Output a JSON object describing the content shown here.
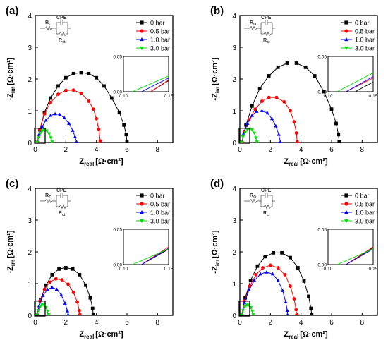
{
  "chart_data": [
    {
      "type": "scatter",
      "panel_label": "(a)",
      "xlabel_main": "Z",
      "xlabel_sub": "real",
      "xlabel_unit": "[Ω·cm²]",
      "ylabel_main": "-Z",
      "ylabel_sub": "im",
      "ylabel_unit": "[Ω·cm²]",
      "xlim": [
        0,
        9
      ],
      "ylim": [
        0,
        4
      ],
      "xticks": [
        "0",
        "2",
        "4",
        "6",
        "8"
      ],
      "yticks": [
        "0",
        "1",
        "2",
        "3",
        "4"
      ],
      "circuit": {
        "label_r0": "R",
        "label_r0_sub": "Ω",
        "label_cpe": "CPE",
        "label_rct": "R",
        "label_rct_sub": "ct"
      },
      "legend_position": "top-right",
      "series": [
        {
          "name": "0 bar",
          "color": "#000000",
          "marker": "square",
          "x": [
            0.13,
            0.3,
            0.6,
            1.0,
            1.5,
            2.0,
            2.5,
            3.0,
            3.5,
            4.0,
            4.5,
            5.0,
            5.5,
            5.8,
            5.95,
            6.0
          ],
          "y": [
            0.0,
            0.4,
            0.95,
            1.4,
            1.78,
            2.04,
            2.17,
            2.2,
            2.17,
            2.04,
            1.78,
            1.4,
            0.95,
            0.55,
            0.25,
            0.02
          ]
        },
        {
          "name": "0.5 bar",
          "color": "#ff0000",
          "marker": "circle",
          "x": [
            0.13,
            0.3,
            0.6,
            1.0,
            1.5,
            2.0,
            2.5,
            3.0,
            3.5,
            3.8,
            4.0,
            4.15,
            4.25
          ],
          "y": [
            0.0,
            0.42,
            0.9,
            1.26,
            1.52,
            1.64,
            1.65,
            1.55,
            1.3,
            1.05,
            0.75,
            0.42,
            0.05
          ]
        },
        {
          "name": "1.0 bar",
          "color": "#0000ff",
          "marker": "triangle",
          "x": [
            0.12,
            0.25,
            0.45,
            0.7,
            1.0,
            1.3,
            1.6,
            1.9,
            2.2,
            2.45,
            2.6,
            2.7
          ],
          "y": [
            0.0,
            0.25,
            0.5,
            0.7,
            0.85,
            0.9,
            0.88,
            0.78,
            0.6,
            0.38,
            0.18,
            0.02
          ]
        },
        {
          "name": "3.0 bar",
          "color": "#00dd00",
          "marker": "triangle-down",
          "x": [
            0.11,
            0.2,
            0.32,
            0.45,
            0.6,
            0.75,
            0.9,
            1.02,
            1.1
          ],
          "y": [
            0.0,
            0.15,
            0.28,
            0.37,
            0.4,
            0.37,
            0.28,
            0.15,
            0.02
          ]
        }
      ],
      "inset": {
        "xlim": [
          0.1,
          0.15
        ],
        "ylim": [
          0,
          0.05
        ],
        "xticks": [
          "0.10",
          "0.15"
        ],
        "yticks": [
          "0.00",
          "0.05"
        ]
      }
    },
    {
      "type": "scatter",
      "panel_label": "(b)",
      "xlabel_main": "Z",
      "xlabel_sub": "real",
      "xlabel_unit": "[Ω·cm²]",
      "ylabel_main": "-Z",
      "ylabel_sub": "im",
      "ylabel_unit": "[Ω·cm²]",
      "xlim": [
        0,
        9
      ],
      "ylim": [
        0,
        4
      ],
      "xticks": [
        "0",
        "2",
        "4",
        "6",
        "8"
      ],
      "yticks": [
        "0",
        "1",
        "2",
        "3",
        "4"
      ],
      "circuit": {
        "label_r0": "R",
        "label_r0_sub": "Ω",
        "label_cpe": "CPE",
        "label_rct": "R",
        "label_rct_sub": "ct"
      },
      "legend_position": "top-right",
      "series": [
        {
          "name": "0 bar",
          "color": "#000000",
          "marker": "square",
          "x": [
            0.13,
            0.4,
            0.8,
            1.3,
            1.9,
            2.5,
            3.1,
            3.7,
            4.3,
            4.9,
            5.5,
            6.0,
            6.3,
            6.45,
            6.5
          ],
          "y": [
            0.0,
            0.55,
            1.15,
            1.7,
            2.1,
            2.37,
            2.5,
            2.5,
            2.37,
            2.1,
            1.6,
            1.05,
            0.6,
            0.25,
            0.02
          ]
        },
        {
          "name": "0.5 bar",
          "color": "#ff0000",
          "marker": "circle",
          "x": [
            0.12,
            0.3,
            0.6,
            1.0,
            1.45,
            1.9,
            2.4,
            2.9,
            3.3,
            3.55,
            3.7,
            3.75
          ],
          "y": [
            0.0,
            0.35,
            0.72,
            1.05,
            1.3,
            1.42,
            1.42,
            1.28,
            1.0,
            0.65,
            0.3,
            0.02
          ]
        },
        {
          "name": "1.0 bar",
          "color": "#0000ff",
          "marker": "triangle",
          "x": [
            0.12,
            0.25,
            0.5,
            0.8,
            1.1,
            1.45,
            1.8,
            2.1,
            2.35,
            2.55,
            2.65
          ],
          "y": [
            0.0,
            0.28,
            0.6,
            0.85,
            0.98,
            1.0,
            0.93,
            0.75,
            0.52,
            0.25,
            0.02
          ]
        },
        {
          "name": "3.0 bar",
          "color": "#00dd00",
          "marker": "triangle-down",
          "x": [
            0.11,
            0.2,
            0.35,
            0.5,
            0.65,
            0.8,
            0.95,
            1.05,
            1.12
          ],
          "y": [
            0.0,
            0.18,
            0.32,
            0.4,
            0.43,
            0.4,
            0.3,
            0.15,
            0.02
          ]
        }
      ],
      "inset": {
        "xlim": [
          0.1,
          0.15
        ],
        "ylim": [
          0,
          0.05
        ],
        "xticks": [
          "0.10",
          "0.15"
        ],
        "yticks": [
          "0.00",
          "0.05"
        ]
      }
    },
    {
      "type": "scatter",
      "panel_label": "(c)",
      "xlabel_main": "Z",
      "xlabel_sub": "real",
      "xlabel_unit": "[Ω·cm²]",
      "ylabel_main": "-Z",
      "ylabel_sub": "im",
      "ylabel_unit": "[Ω·cm²]",
      "xlim": [
        0,
        9
      ],
      "ylim": [
        0,
        4
      ],
      "xticks": [
        "0",
        "2",
        "4",
        "6",
        "8"
      ],
      "yticks": [
        "0",
        "1",
        "2",
        "3",
        "4"
      ],
      "circuit": {
        "label_r0": "R",
        "label_r0_sub": "Ω",
        "label_cpe": "CPE",
        "label_rct": "R",
        "label_rct_sub": "ct"
      },
      "legend_position": "top-right",
      "series": [
        {
          "name": "0 bar",
          "color": "#000000",
          "marker": "square",
          "x": [
            0.12,
            0.35,
            0.7,
            1.1,
            1.55,
            2.0,
            2.45,
            2.9,
            3.3,
            3.6,
            3.75,
            3.8
          ],
          "y": [
            0.0,
            0.5,
            0.95,
            1.28,
            1.46,
            1.5,
            1.46,
            1.28,
            0.95,
            0.55,
            0.22,
            0.02
          ]
        },
        {
          "name": "0.5 bar",
          "color": "#ff0000",
          "marker": "circle",
          "x": [
            0.12,
            0.3,
            0.6,
            0.95,
            1.35,
            1.75,
            2.15,
            2.5,
            2.75,
            2.88,
            2.92
          ],
          "y": [
            0.0,
            0.45,
            0.82,
            1.05,
            1.15,
            1.12,
            0.98,
            0.72,
            0.42,
            0.15,
            0.02
          ]
        },
        {
          "name": "1.0 bar",
          "color": "#0000ff",
          "marker": "triangle",
          "x": [
            0.12,
            0.25,
            0.5,
            0.8,
            1.1,
            1.4,
            1.7,
            1.95,
            2.1,
            2.15
          ],
          "y": [
            0.0,
            0.3,
            0.62,
            0.82,
            0.88,
            0.82,
            0.64,
            0.38,
            0.14,
            0.02
          ]
        },
        {
          "name": "3.0 bar",
          "color": "#00dd00",
          "marker": "triangle-down",
          "x": [
            0.11,
            0.2,
            0.32,
            0.45,
            0.58,
            0.7,
            0.8,
            0.87
          ],
          "y": [
            0.0,
            0.15,
            0.27,
            0.33,
            0.33,
            0.25,
            0.13,
            0.02
          ]
        }
      ],
      "inset": {
        "xlim": [
          0.1,
          0.15
        ],
        "ylim": [
          0,
          0.05
        ],
        "xticks": [
          "0.10",
          "0.15"
        ],
        "yticks": [
          "0.00",
          "0.05"
        ]
      }
    },
    {
      "type": "scatter",
      "panel_label": "(d)",
      "xlabel_main": "Z",
      "xlabel_sub": "real",
      "xlabel_unit": "[Ω·cm²]",
      "ylabel_main": "-Z",
      "ylabel_sub": "im",
      "ylabel_unit": "[Ω·cm²]",
      "xlim": [
        0,
        9
      ],
      "ylim": [
        0,
        4
      ],
      "xticks": [
        "0",
        "2",
        "4",
        "6",
        "8"
      ],
      "yticks": [
        "0",
        "1",
        "2",
        "3",
        "4"
      ],
      "circuit": {
        "label_r0": "R",
        "label_r0_sub": "Ω",
        "label_cpe": "CPE",
        "label_rct": "R",
        "label_rct_sub": "ct"
      },
      "legend_position": "top-right",
      "series": [
        {
          "name": "0 bar",
          "color": "#000000",
          "marker": "square",
          "x": [
            0.12,
            0.35,
            0.7,
            1.15,
            1.65,
            2.2,
            2.75,
            3.3,
            3.8,
            4.2,
            4.5,
            4.65,
            4.7
          ],
          "y": [
            0.0,
            0.55,
            1.1,
            1.55,
            1.85,
            1.97,
            1.97,
            1.82,
            1.5,
            1.08,
            0.6,
            0.22,
            0.02
          ]
        },
        {
          "name": "0.5 bar",
          "color": "#ff0000",
          "marker": "circle",
          "x": [
            0.12,
            0.3,
            0.65,
            1.05,
            1.5,
            2.0,
            2.5,
            2.95,
            3.3,
            3.55,
            3.68,
            3.72
          ],
          "y": [
            0.0,
            0.45,
            0.92,
            1.28,
            1.5,
            1.58,
            1.5,
            1.28,
            0.92,
            0.52,
            0.18,
            0.02
          ]
        },
        {
          "name": "1.0 bar",
          "color": "#0000ff",
          "marker": "triangle",
          "x": [
            0.12,
            0.3,
            0.6,
            0.95,
            1.35,
            1.75,
            2.15,
            2.5,
            2.8,
            3.0,
            3.1,
            3.12
          ],
          "y": [
            0.0,
            0.4,
            0.8,
            1.1,
            1.3,
            1.36,
            1.3,
            1.1,
            0.78,
            0.42,
            0.15,
            0.02
          ]
        },
        {
          "name": "3.0 bar",
          "color": "#00dd00",
          "marker": "triangle-down",
          "x": [
            0.11,
            0.2,
            0.33,
            0.47,
            0.6,
            0.72,
            0.82,
            0.88
          ],
          "y": [
            0.0,
            0.15,
            0.27,
            0.33,
            0.32,
            0.25,
            0.13,
            0.02
          ]
        }
      ],
      "inset": {
        "xlim": [
          0.1,
          0.15
        ],
        "ylim": [
          0,
          0.05
        ],
        "xticks": [
          "0.10",
          "0.15"
        ],
        "yticks": [
          "0.00",
          "0.05"
        ]
      }
    }
  ]
}
